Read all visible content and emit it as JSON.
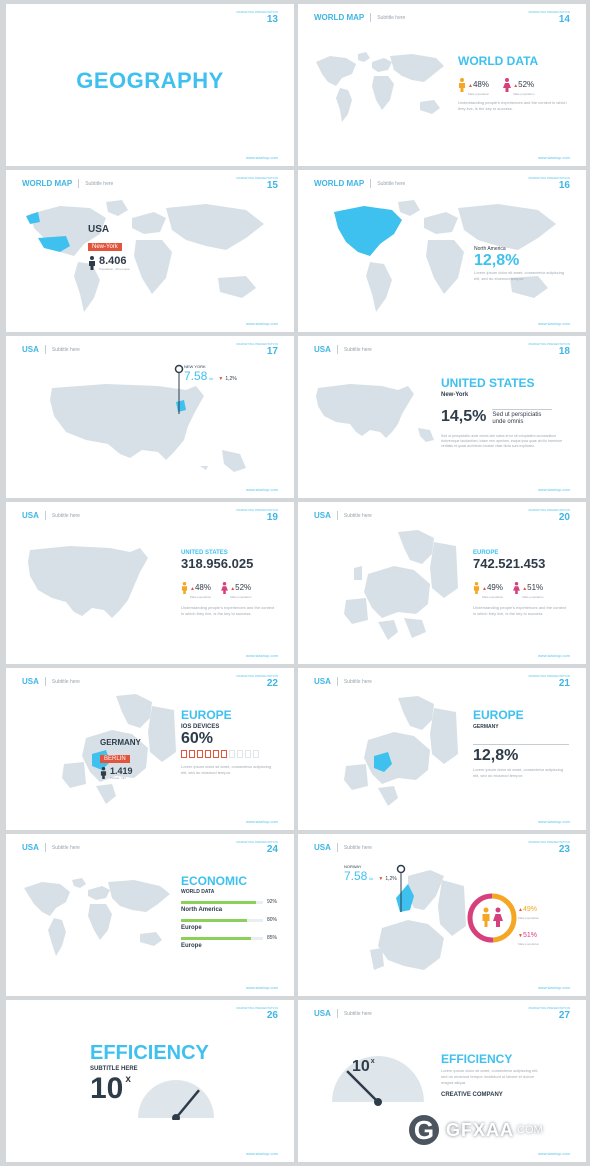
{
  "common": {
    "url": "www.slashup.com",
    "page_label": "MARKETING PRESENTATION",
    "subtitle": "Subtitle here"
  },
  "colors": {
    "accent": "#3ec1ef",
    "dark": "#2e3c4a",
    "red": "#e3543d",
    "orange": "#f5a623",
    "pink": "#d6417d",
    "green": "#8bd05a",
    "map": "#d7e0e6"
  },
  "s13": {
    "num": "13",
    "title": "GEOGRAPHY"
  },
  "s14": {
    "num": "14",
    "header": "WORLD MAP",
    "heading": "WORLD DATA",
    "male_pct": "48%",
    "female_pct": "52%",
    "male_label": "Male population",
    "female_label": "Male population",
    "text": "Understanding people's experiences and the context in which they live, is the key to success.",
    "male_share": 48,
    "female_share": 52
  },
  "s15": {
    "num": "15",
    "header": "WORLD MAP",
    "country": "USA",
    "city": "New-York",
    "value": "8.406",
    "value_label": "Population, mln people"
  },
  "s16": {
    "num": "16",
    "header": "WORLD MAP",
    "region": "North America",
    "value": "12,8%",
    "text": "Lorem ipsum dolor sit amet, consectetur adipiscing elit, sed do eiusmod tempor."
  },
  "s17": {
    "num": "17",
    "header": "USA",
    "city": "NEW YORK",
    "value": "7.58",
    "unit": "kk",
    "change": "1,2%"
  },
  "s18": {
    "num": "18",
    "header": "USA",
    "heading": "UNITED STATES",
    "city": "New-York",
    "value": "14,5%",
    "side": "Sed ut perspiciatis unde omnis",
    "text": "Sed ut perspiciatis unde omnis iste natus error sit voluptatem accusantium doloremque laudantium, totam rem aperiam, eaque ipsa quae ab illo inventore veritatis et quasi architecto beatae vitae dicta sunt explicabo."
  },
  "s19": {
    "num": "19",
    "header": "USA",
    "heading": "UNITED STATES",
    "value": "318.956.025",
    "male_pct": "48%",
    "female_pct": "52%",
    "male_label": "Male population",
    "female_label": "Male population",
    "text": "Understanding people's experiences and the context in which they live, is the key to success."
  },
  "s20": {
    "num": "20",
    "header": "USA",
    "heading": "EUROPE",
    "value": "742.521.453",
    "male_pct": "49%",
    "female_pct": "51%",
    "male_label": "Male population",
    "female_label": "Male population",
    "text": "Understanding people's experiences and the context in which they live, is the key to success."
  },
  "s22": {
    "num": "22",
    "header": "USA",
    "heading": "EUROPE",
    "sub": "IOS DEVICES",
    "value": "60%",
    "country": "GERMANY",
    "city": "BERLIN",
    "city_value": "1.419",
    "city_value_label": "People, mln",
    "text": "Lorem ipsum dolor sit amet, consectetur adipiscing elit, sed do eiusmod tempor.",
    "ios_fraction": 0.6
  },
  "s21": {
    "num": "21",
    "header": "USA",
    "heading": "EUROPE",
    "sub": "GERMANY",
    "value": "12,8%",
    "text": "Lorem ipsum dolor sit amet, consectetur adipiscing elit, sed do eiusmod tempor."
  },
  "s24": {
    "num": "24",
    "header": "USA",
    "heading": "ECONOMIC",
    "sub": "WORLD DATA",
    "bars": [
      {
        "label": "North America",
        "pct_text": "92%",
        "value": 92
      },
      {
        "label": "Europe",
        "pct_text": "80%",
        "value": 80
      },
      {
        "label": "Europe",
        "pct_text": "85%",
        "value": 85
      }
    ]
  },
  "s23": {
    "num": "23",
    "header": "USA",
    "country": "NORWAY",
    "value": "7.58",
    "unit": "kk",
    "change": "1,2%",
    "male_pct": "49%",
    "female_pct": "51%",
    "male_label": "Male population",
    "female_label": "Male population",
    "male_share": 49,
    "female_share": 51
  },
  "s26": {
    "num": "26",
    "heading": "EFFICIENCY",
    "sub": "SUBTITLE HERE",
    "value": "10",
    "unit": "x",
    "gauge_fraction": 0.72
  },
  "s27": {
    "num": "27",
    "header": "USA",
    "heading": "EFFICIENCY",
    "value": "10",
    "unit": "x",
    "text": "Lorem ipsum dolor sit amet, consectetur adipiscing elit, sed do eiusmod tempor incididunt ut labore et dolore magna aliqua.",
    "company": "CREATIVE COMPANY",
    "gauge_fraction": 0.25
  },
  "watermark": {
    "letter": "G",
    "brand": "GFXAA",
    "tld": ".COM"
  }
}
